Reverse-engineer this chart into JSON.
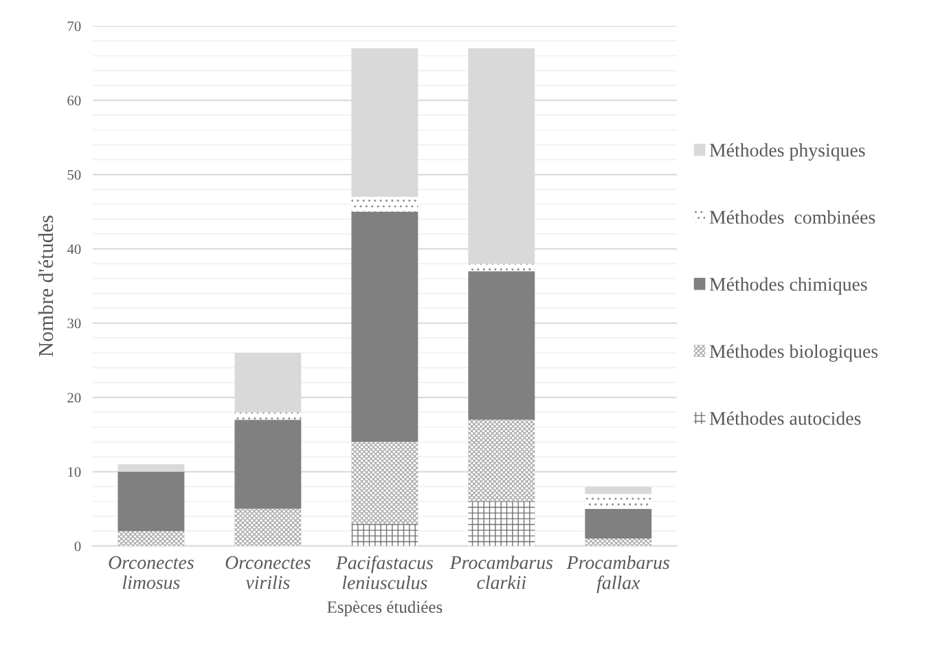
{
  "chart_data": {
    "type": "bar",
    "stacked": true,
    "xlabel": "Espèces étudiées",
    "ylabel": "Nombre d'études",
    "categories": [
      "Orconectes\nlimosus",
      "Orconectes\nvirilis",
      "Pacifastacus\nleniusculus",
      "Procambarus\nclarkii",
      "Procambarus\nfallax"
    ],
    "series": [
      {
        "name": "Méthodes autocides",
        "color": "#6f6f6f",
        "values": [
          0,
          0,
          3,
          6,
          0
        ]
      },
      {
        "name": "Méthodes biologiques",
        "color": "#a6a6a6",
        "values": [
          2,
          5,
          11,
          11,
          1
        ]
      },
      {
        "name": "Méthodes chimiques",
        "color": "#808080",
        "values": [
          8,
          12,
          31,
          20,
          4
        ]
      },
      {
        "name": "Méthodes  combinées",
        "color": "#8c8c8c",
        "values": [
          0,
          1,
          2,
          1,
          2
        ]
      },
      {
        "name": "Méthodes physiques",
        "color": "#d9d9d9",
        "values": [
          1,
          8,
          20,
          29,
          1
        ]
      }
    ],
    "ylim": [
      0,
      70
    ],
    "yticks": [
      0,
      {
        "value": 2,
        "label": null
      },
      {
        "value": 4,
        "label": null
      },
      {
        "value": 6,
        "label": null
      },
      {
        "value": 8,
        "label": null
      },
      10,
      {
        "value": 12,
        "label": null
      },
      {
        "value": 14,
        "label": null
      },
      {
        "value": 16,
        "label": null
      },
      {
        "value": 18,
        "label": null
      },
      20,
      {
        "value": 22,
        "label": null
      },
      {
        "value": 24,
        "label": null
      },
      {
        "value": 26,
        "label": null
      },
      {
        "value": 28,
        "label": null
      },
      30,
      {
        "value": 32,
        "label": null
      },
      {
        "value": 34,
        "label": null
      },
      {
        "value": 36,
        "label": null
      },
      {
        "value": 38,
        "label": null
      },
      40,
      {
        "value": 42,
        "label": null
      },
      {
        "value": 44,
        "label": null
      },
      {
        "value": 46,
        "label": null
      },
      {
        "value": 48,
        "label": null
      },
      50,
      {
        "value": 52,
        "label": null
      },
      {
        "value": 54,
        "label": null
      },
      {
        "value": 56,
        "label": null
      },
      {
        "value": 58,
        "label": null
      },
      60,
      {
        "value": 62,
        "label": null
      },
      {
        "value": 64,
        "label": null
      },
      {
        "value": 66,
        "label": null
      },
      {
        "value": 68,
        "label": null
      },
      70
    ],
    "grid": "y",
    "legend": "right"
  }
}
